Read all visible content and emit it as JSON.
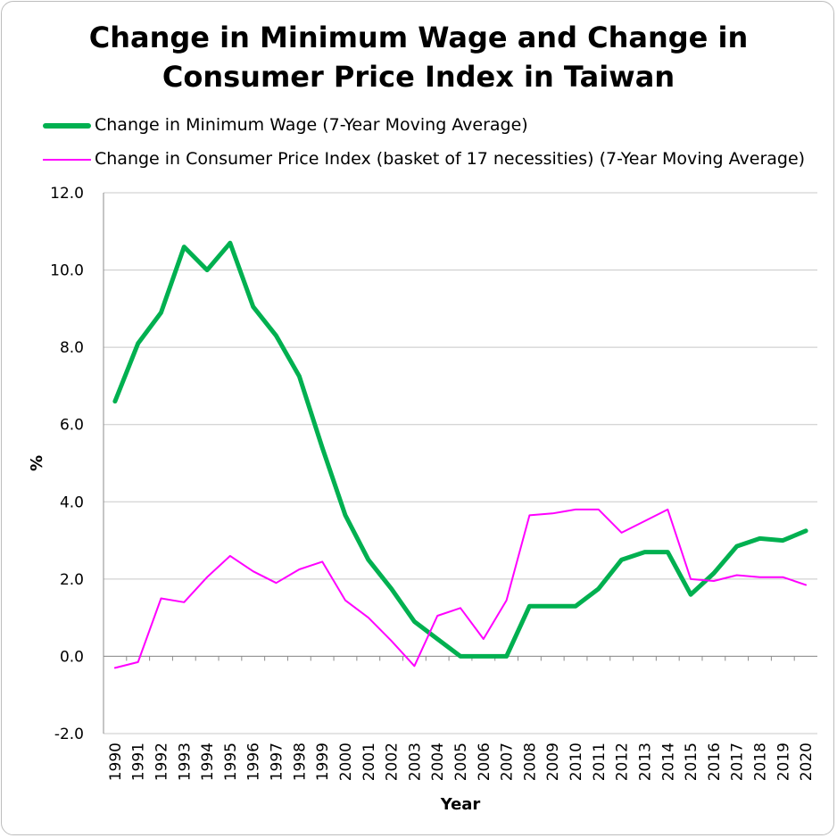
{
  "chart_data": {
    "type": "line",
    "title": "Change in Minimum Wage and Change in Consumer Price Index in Taiwan",
    "title_lines": [
      "Change in Minimum Wage and Change in",
      "Consumer Price Index in Taiwan"
    ],
    "xlabel": "Year",
    "ylabel": "%",
    "ylim": [
      -2.0,
      12.0
    ],
    "yticks": [
      "-2.0",
      "0.0",
      "2.0",
      "4.0",
      "6.0",
      "8.0",
      "10.0",
      "12.0"
    ],
    "grid": true,
    "legend": "top-left",
    "categories": [
      "1990",
      "1991",
      "1992",
      "1993",
      "1994",
      "1995",
      "1996",
      "1997",
      "1998",
      "1999",
      "2000",
      "2001",
      "2002",
      "2003",
      "2004",
      "2005",
      "2006",
      "2007",
      "2008",
      "2009",
      "2010",
      "2011",
      "2012",
      "2013",
      "2014",
      "2015",
      "2016",
      "2017",
      "2018",
      "2019",
      "2020"
    ],
    "series": [
      {
        "name": "Change in Minimum Wage (7-Year Moving Average)",
        "color": "#00b050",
        "values": [
          6.6,
          8.1,
          8.9,
          10.6,
          10.0,
          10.7,
          9.05,
          8.3,
          7.25,
          5.4,
          3.65,
          2.5,
          1.75,
          0.9,
          0.45,
          0.0,
          0.0,
          0.0,
          1.3,
          1.3,
          1.3,
          1.75,
          2.5,
          2.7,
          2.7,
          1.6,
          2.15,
          2.85,
          3.05,
          3.0,
          3.25
        ]
      },
      {
        "name": "Change in Consumer Price Index (basket of 17 necessities) (7-Year Moving Average)",
        "color": "#ff00ff",
        "values": [
          -0.3,
          -0.15,
          1.5,
          1.4,
          2.05,
          2.6,
          2.2,
          1.9,
          2.25,
          2.45,
          1.45,
          1.0,
          0.4,
          -0.25,
          1.05,
          1.25,
          0.45,
          1.45,
          3.65,
          3.7,
          3.8,
          3.8,
          3.2,
          3.5,
          3.8,
          2.0,
          1.95,
          2.1,
          2.05,
          2.05,
          1.85
        ]
      }
    ]
  }
}
